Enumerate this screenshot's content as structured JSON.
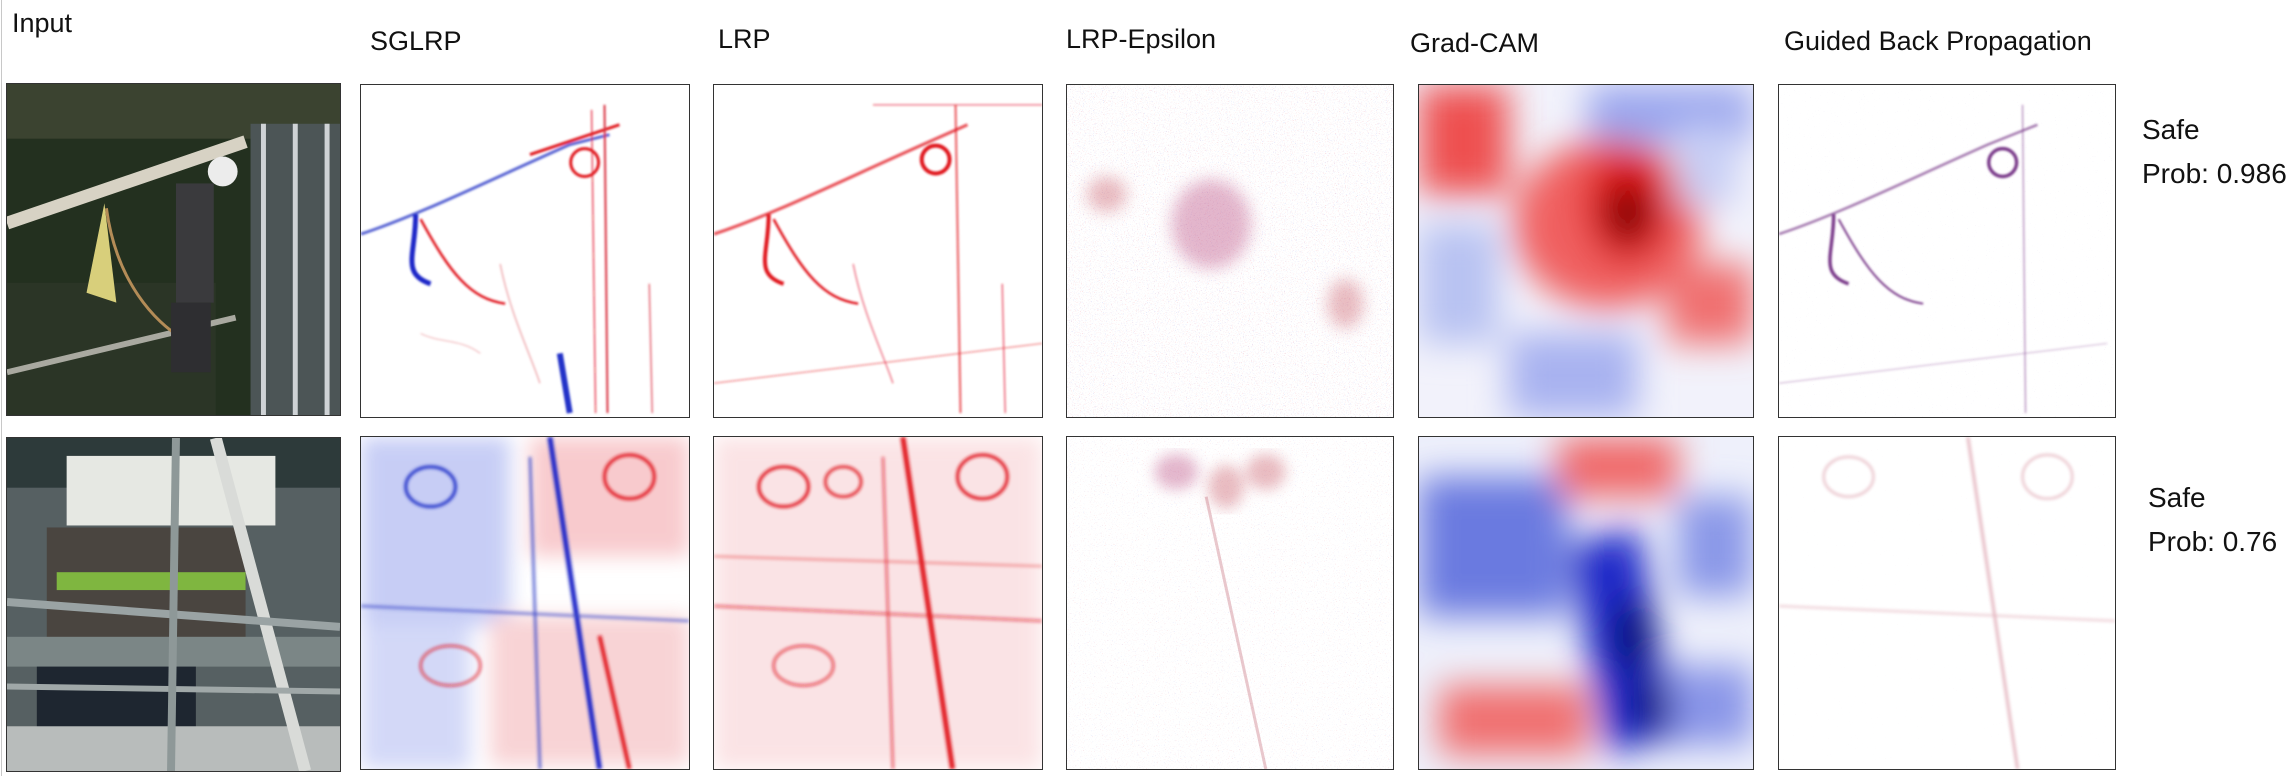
{
  "columns": {
    "input": "Input",
    "sglrp": "SGLRP",
    "lrp": "LRP",
    "lrp_epsilon": "LRP-Epsilon",
    "gradcam": "Grad-CAM",
    "gbp": "Guided Back Propagation"
  },
  "rows": [
    {
      "label": "Safe",
      "prob": "Prob: 0.986"
    },
    {
      "label": "Safe",
      "prob": "Prob: 0.76"
    }
  ],
  "colors": {
    "positive": "#e0141e",
    "negative": "#1e28c8",
    "frame": "#333333"
  }
}
